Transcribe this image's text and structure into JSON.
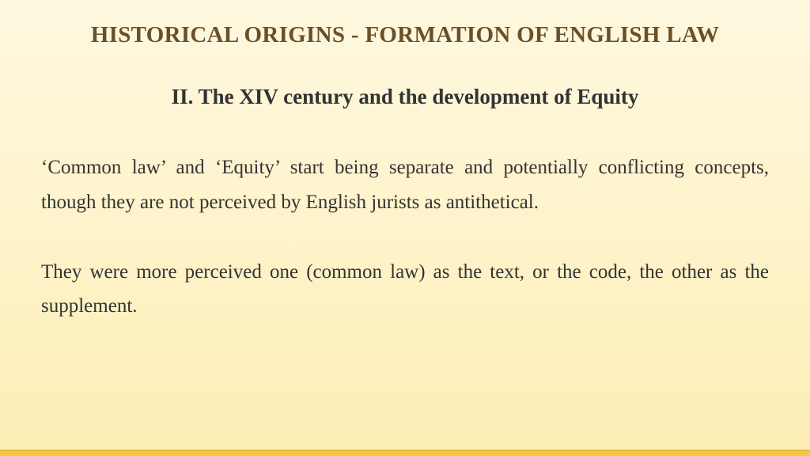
{
  "slide": {
    "title": "HISTORICAL ORIGINS - FORMATION OF ENGLISH LAW",
    "subtitle": "II. The XIV century and the development of Equity",
    "paragraph1": "‘Common law’ and ‘Equity’ start being separate and potentially conflicting concepts, though they are not perceived by English jurists as antithetical.",
    "paragraph2": "They were more perceived one (common law) as the text, or the code, the other as the supplement."
  },
  "style": {
    "background_gradient_top": "#fef8e0",
    "background_gradient_bottom": "#fdeeb5",
    "title_color": "#6a5028",
    "title_fontsize": 29,
    "subtitle_color": "#333333",
    "subtitle_fontsize": 27,
    "body_color": "#333333",
    "body_fontsize": 25,
    "body_lineheight": 1.75,
    "accent_bar_color": "#f4c842",
    "accent_bar_height": 8,
    "font_family": "Georgia, Times New Roman, serif"
  }
}
